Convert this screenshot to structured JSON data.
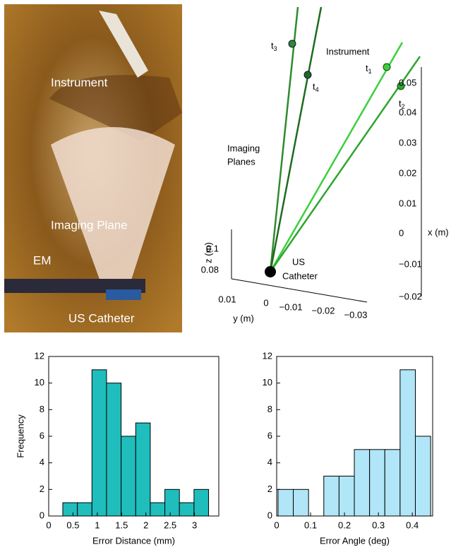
{
  "photo": {
    "labels": [
      "Instrument",
      "Imaging Plane",
      "EM",
      "US Catheter"
    ]
  },
  "plot3d": {
    "markers": [
      {
        "t": "t",
        "sub": "3"
      },
      {
        "t": "t",
        "sub": "4"
      },
      {
        "t": "t",
        "sub": "1"
      },
      {
        "t": "t",
        "sub": "2"
      }
    ],
    "instrument": "Instrument",
    "imaging": [
      "Imaging",
      "Planes"
    ],
    "catheter": [
      "US",
      "Catheter"
    ],
    "zlabel": "z (m)",
    "ylabel": "y (m)",
    "xlabel": "x (m)",
    "zticks": [
      "0.1",
      "0.08"
    ],
    "yticks": [
      "0.01",
      "0",
      "−0.01",
      "−0.02",
      "−0.03"
    ],
    "xticks": [
      "0.05",
      "0.04",
      "0.03",
      "0.02",
      "0.01",
      "0",
      "−0.01",
      "−0.02"
    ]
  },
  "chart_data": [
    {
      "type": "histogram",
      "xlabel": "Error Distance (mm)",
      "ylabel": "Frequency",
      "color": "#20bdbd",
      "bins": [
        0.29,
        0.59,
        0.89,
        1.19,
        1.49,
        1.79,
        2.09,
        2.39,
        2.69,
        2.99,
        3.29
      ],
      "counts": [
        1,
        1,
        11,
        10,
        6,
        7,
        1,
        2,
        1,
        2
      ],
      "xlim": [
        0,
        3.5
      ],
      "xticks": [
        0,
        0.5,
        1,
        1.5,
        2,
        2.5,
        3
      ],
      "ylim": [
        0,
        12
      ],
      "yticks": [
        0,
        2,
        4,
        6,
        8,
        10,
        12
      ]
    },
    {
      "type": "histogram",
      "xlabel": "Error Angle (deg)",
      "color": "#b0e6f7",
      "bins": [
        0.004,
        0.049,
        0.094,
        0.139,
        0.184,
        0.229,
        0.274,
        0.319,
        0.364,
        0.409,
        0.454
      ],
      "counts": [
        2,
        2,
        0,
        3,
        3,
        5,
        5,
        5,
        11,
        6
      ],
      "xlim": [
        0,
        0.46
      ],
      "xticks": [
        0,
        0.1,
        0.2,
        0.3,
        0.4
      ],
      "ylim": [
        0,
        12
      ],
      "yticks": [
        0,
        2,
        4,
        6,
        8,
        10,
        12
      ]
    }
  ]
}
